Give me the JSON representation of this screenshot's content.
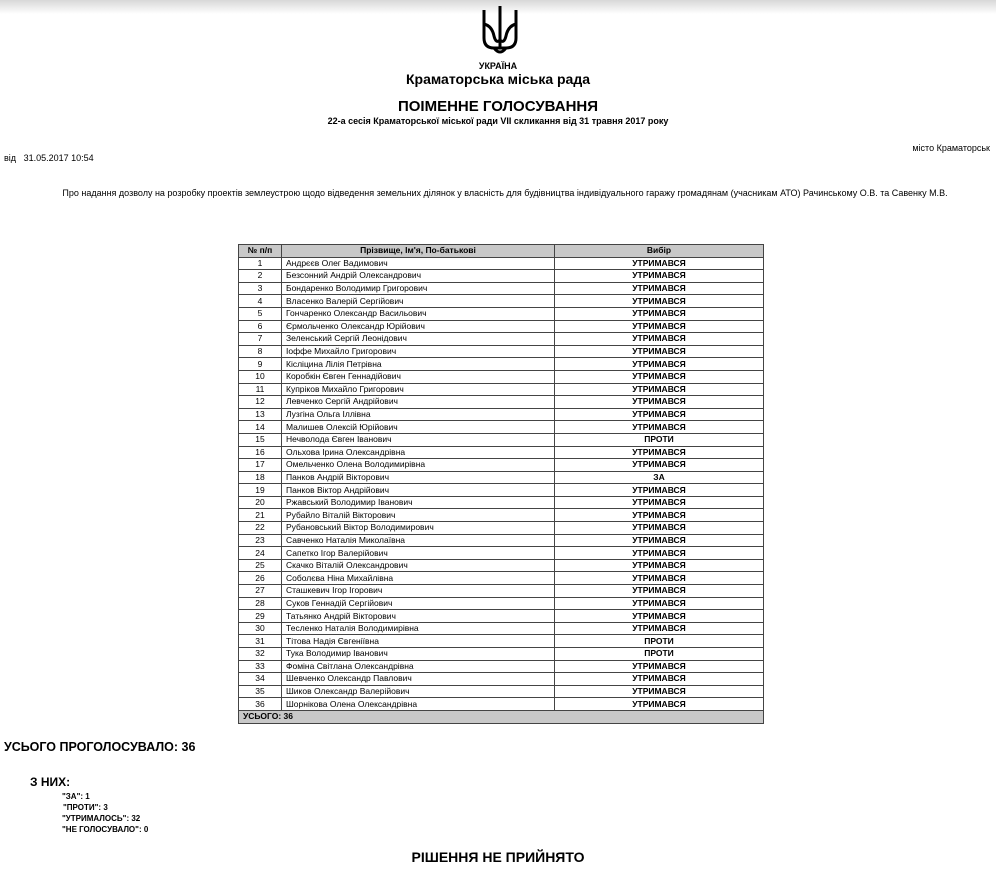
{
  "header": {
    "country": "УКРАЇНА",
    "council": "Краматорська міська рада",
    "title": "ПОІМЕННЕ ГОЛОСУВАННЯ",
    "subtitle": "22-а сесія Краматорської міської ради VII скликання від 31 травня 2017 року",
    "city": "місто Краматорськ",
    "date_label": "від",
    "date": "31.05.2017 10:54"
  },
  "description": "Про надання дозволу на розробку проектів землеустрою щодо відведення земельних ділянок у власність для будівництва індивідуального гаражу громадянам (учасникам АТО) Рачинському О.В. та Савенку М.В.",
  "table": {
    "columns": [
      "№ п/п",
      "Прізвище, Ім'я, По-батькові",
      "Вибір"
    ],
    "rows": [
      [
        "1",
        "Андрєєв Олег Вадимович",
        "УТРИМАВСЯ"
      ],
      [
        "2",
        "Безсонний Андрій Олександрович",
        "УТРИМАВСЯ"
      ],
      [
        "3",
        "Бондаренко Володимир Григорович",
        "УТРИМАВСЯ"
      ],
      [
        "4",
        "Власенко Валерій Сергійович",
        "УТРИМАВСЯ"
      ],
      [
        "5",
        "Гончаренко Олександр Васильович",
        "УТРИМАВСЯ"
      ],
      [
        "6",
        "Єрмольченко Олександр Юрійович",
        "УТРИМАВСЯ"
      ],
      [
        "7",
        "Зеленський Сергій Леонідович",
        "УТРИМАВСЯ"
      ],
      [
        "8",
        "Іоффе Михайло Григорович",
        "УТРИМАВСЯ"
      ],
      [
        "9",
        "Кісліцина Лілія Петрівна",
        "УТРИМАВСЯ"
      ],
      [
        "10",
        "Коробкін Євген Геннадійович",
        "УТРИМАВСЯ"
      ],
      [
        "11",
        "Купріков Михайло Григорович",
        "УТРИМАВСЯ"
      ],
      [
        "12",
        "Левченко Сергій Андрійович",
        "УТРИМАВСЯ"
      ],
      [
        "13",
        "Лузгіна Ольга Іллівна",
        "УТРИМАВСЯ"
      ],
      [
        "14",
        "Малишев Олексій Юрійович",
        "УТРИМАВСЯ"
      ],
      [
        "15",
        "Нечволода Євген Іванович",
        "ПРОТИ"
      ],
      [
        "16",
        "Ольхова Ірина Олександрівна",
        "УТРИМАВСЯ"
      ],
      [
        "17",
        "Омельченко Олена Володимирівна",
        "УТРИМАВСЯ"
      ],
      [
        "18",
        "Панков Андрій Вікторович",
        "ЗА"
      ],
      [
        "19",
        "Панков Віктор Андрійович",
        "УТРИМАВСЯ"
      ],
      [
        "20",
        "Ржавський Володимир Іванович",
        "УТРИМАВСЯ"
      ],
      [
        "21",
        "Рубайло Віталій Вікторович",
        "УТРИМАВСЯ"
      ],
      [
        "22",
        "Рубановський Віктор Володимирович",
        "УТРИМАВСЯ"
      ],
      [
        "23",
        "Савченко Наталія Миколаївна",
        "УТРИМАВСЯ"
      ],
      [
        "24",
        "Сапетко Ігор Валерійович",
        "УТРИМАВСЯ"
      ],
      [
        "25",
        "Скачко Віталій Олександрович",
        "УТРИМАВСЯ"
      ],
      [
        "26",
        "Соболєва Ніна Михайлівна",
        "УТРИМАВСЯ"
      ],
      [
        "27",
        "Сташкевич Ігор Ігорович",
        "УТРИМАВСЯ"
      ],
      [
        "28",
        "Суков Геннадій Сергійович",
        "УТРИМАВСЯ"
      ],
      [
        "29",
        "Татьянко Андрій Вікторович",
        "УТРИМАВСЯ"
      ],
      [
        "30",
        "Тесленко Наталія Володимирівна",
        "УТРИМАВСЯ"
      ],
      [
        "31",
        "Тітова Надія Євгеніївна",
        "ПРОТИ"
      ],
      [
        "32",
        "Тука Володимир Іванович",
        "ПРОТИ"
      ],
      [
        "33",
        "Фоміна Світлана Олександрівна",
        "УТРИМАВСЯ"
      ],
      [
        "34",
        "Шевченко Олександр Павлович",
        "УТРИМАВСЯ"
      ],
      [
        "35",
        "Шиков Олександр Валерійович",
        "УТРИМАВСЯ"
      ],
      [
        "36",
        "Шорнікова Олена Олександрівна",
        "УТРИМАВСЯ"
      ]
    ],
    "total": "УСЬОГО:  36"
  },
  "summary": {
    "total_voted": "УСЬОГО ПРОГОЛОСУВАЛО:  36",
    "of_them": "З НИХ:",
    "for": "\"ЗА\": 1",
    "against": "\"ПРОТИ\":  3",
    "abstained": "\"УТРИМАЛОСЬ\": 32",
    "not_voted": "\"НЕ ГОЛОСУВАЛО\":  0",
    "decision": "РІШЕННЯ НЕ ПРИЙНЯТО"
  }
}
